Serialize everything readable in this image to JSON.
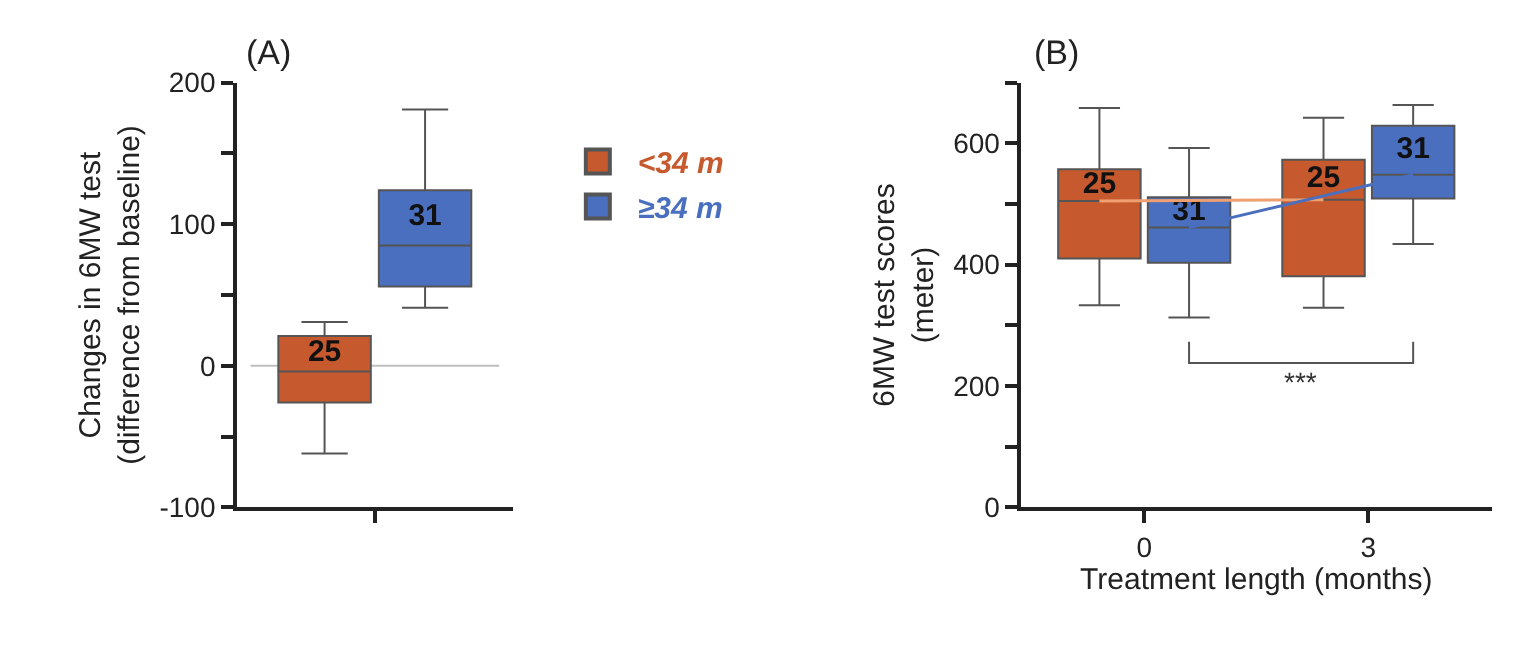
{
  "chart_data": [
    {
      "type": "box",
      "title": "(A)",
      "ylabel": "Changes in 6MW test\n(difference from baseline)",
      "categories": [
        null
      ],
      "ylim": [
        -100,
        200
      ],
      "yticks": [
        -100,
        {
          "value": -50,
          "label": null
        },
        0,
        {
          "value": 50,
          "label": null
        },
        100,
        {
          "value": 150,
          "label": null
        },
        200
      ],
      "grid": false,
      "legend": "right",
      "ref_lines": [
        {
          "axis": "y",
          "value": 0,
          "color": "#bfbfbf"
        }
      ],
      "series": [
        {
          "name": "<34 m",
          "color": "#c65a2e",
          "boxes": [
            {
              "low": -62,
              "q1": -26,
              "median": -4,
              "q3": 21,
              "high": 31
            }
          ],
          "value_labels": [
            "25"
          ]
        },
        {
          "name": "≥34 m",
          "color": "#4a6fbf",
          "boxes": [
            {
              "low": 41,
              "q1": 56,
              "median": 85,
              "q3": 124,
              "high": 181
            }
          ],
          "value_labels": [
            "31"
          ]
        }
      ]
    },
    {
      "type": "box",
      "title": "(B)",
      "ylabel": "6MW test scores\n(meter)",
      "xlabel": "Treatment length (months)",
      "categories": [
        "0",
        "3"
      ],
      "ylim": [
        0,
        700
      ],
      "yticks": [
        0,
        {
          "value": 100,
          "label": null
        },
        200,
        {
          "value": 300,
          "label": null
        },
        400,
        {
          "value": 500,
          "label": null
        },
        600,
        {
          "value": 700,
          "label": null
        }
      ],
      "grid": false,
      "legend": false,
      "annotations": [
        "***"
      ],
      "series": [
        {
          "color": "#c65a2e",
          "boxes": [
            {
              "low": 333,
              "q1": 410,
              "median": 505,
              "q3": 557,
              "high": 658
            },
            {
              "low": 329,
              "q1": 381,
              "median": 507,
              "q3": 573,
              "high": 642
            }
          ],
          "value_labels": [
            "25",
            "25"
          ]
        },
        {
          "color": "#4a6fbf",
          "boxes": [
            {
              "low": 313,
              "q1": 403,
              "median": 461,
              "q3": 511,
              "high": 592
            },
            {
              "low": 434,
              "q1": 509,
              "median": 548,
              "q3": 629,
              "high": 663
            }
          ],
          "value_labels": [
            "31",
            "31"
          ]
        },
        {
          "type": "line",
          "color": "#f0a070",
          "values": [
            505,
            507
          ]
        },
        {
          "type": "line",
          "color": "#4a6fbf",
          "values": [
            461,
            548
          ]
        }
      ]
    }
  ]
}
